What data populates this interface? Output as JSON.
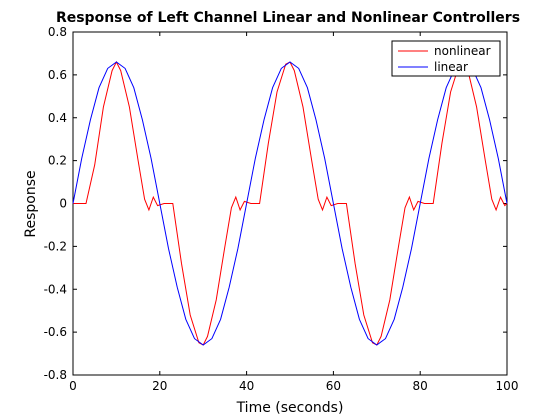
{
  "chart_data": {
    "type": "line",
    "title": "Response of Left Channel Linear and Nonlinear Controllers",
    "xlabel": "Time (seconds)",
    "ylabel": "Response",
    "xlim": [
      0,
      100
    ],
    "ylim": [
      -0.8,
      0.8
    ],
    "xticks": [
      0,
      20,
      40,
      60,
      80,
      100
    ],
    "xtick_labels": [
      "0",
      "20",
      "40",
      "60",
      "80",
      "100"
    ],
    "yticks": [
      -0.8,
      -0.6,
      -0.4,
      -0.2,
      0,
      0.2,
      0.4,
      0.6,
      0.8
    ],
    "ytick_labels": [
      "-0.8",
      "-0.6",
      "-0.4",
      "-0.2",
      "0",
      "0.2",
      "0.4",
      "0.6",
      "0.8"
    ],
    "grid": false,
    "legend_position": "top-right",
    "series": [
      {
        "name": "nonlinear",
        "color": "#ff0000",
        "x": [
          0,
          3,
          5,
          7,
          9,
          10,
          11,
          13,
          15,
          16.5,
          17.5,
          18.5,
          19.5,
          21,
          23,
          25,
          27,
          29,
          30,
          31,
          33,
          35,
          36.5,
          37.5,
          38.5,
          39.5,
          41,
          43,
          45,
          47,
          49,
          50,
          51,
          53,
          55,
          56.5,
          57.5,
          58.5,
          59.5,
          61,
          63,
          65,
          67,
          69,
          70,
          71,
          73,
          75,
          76.5,
          77.5,
          78.5,
          79.5,
          81,
          83,
          85,
          87,
          89,
          90,
          91,
          93,
          95,
          96.5,
          97.5,
          98.5,
          99.5,
          100
        ],
        "y": [
          0,
          0,
          0.18,
          0.45,
          0.62,
          0.66,
          0.62,
          0.45,
          0.2,
          0.02,
          -0.03,
          0.03,
          -0.01,
          0,
          0,
          -0.28,
          -0.52,
          -0.65,
          -0.66,
          -0.62,
          -0.45,
          -0.2,
          -0.02,
          0.03,
          -0.03,
          0.01,
          0,
          0,
          0.28,
          0.52,
          0.65,
          0.66,
          0.62,
          0.45,
          0.2,
          0.02,
          -0.03,
          0.03,
          -0.01,
          0,
          0,
          -0.28,
          -0.52,
          -0.65,
          -0.66,
          -0.62,
          -0.45,
          -0.2,
          -0.02,
          0.03,
          -0.03,
          0.01,
          0,
          0,
          0.28,
          0.52,
          0.65,
          0.66,
          0.62,
          0.45,
          0.2,
          0.02,
          -0.03,
          0.03,
          -0.01,
          0.0
        ]
      },
      {
        "name": "linear",
        "color": "#0000ff",
        "x": [
          0,
          2,
          4,
          6,
          8,
          10,
          12,
          14,
          16,
          18,
          20,
          22,
          24,
          26,
          28,
          30,
          32,
          34,
          36,
          38,
          40,
          42,
          44,
          46,
          48,
          50,
          52,
          54,
          56,
          58,
          60,
          62,
          64,
          66,
          68,
          70,
          72,
          74,
          76,
          78,
          80,
          82,
          84,
          86,
          88,
          90,
          92,
          94,
          96,
          98,
          100
        ],
        "y": [
          0,
          0.21,
          0.39,
          0.54,
          0.63,
          0.66,
          0.63,
          0.54,
          0.39,
          0.21,
          0,
          -0.21,
          -0.39,
          -0.54,
          -0.63,
          -0.66,
          -0.63,
          -0.54,
          -0.39,
          -0.21,
          0,
          0.21,
          0.39,
          0.54,
          0.63,
          0.66,
          0.63,
          0.54,
          0.39,
          0.21,
          0,
          -0.21,
          -0.39,
          -0.54,
          -0.63,
          -0.66,
          -0.63,
          -0.54,
          -0.39,
          -0.21,
          0,
          0.21,
          0.39,
          0.54,
          0.63,
          0.66,
          0.63,
          0.54,
          0.39,
          0.21,
          0
        ]
      }
    ]
  }
}
